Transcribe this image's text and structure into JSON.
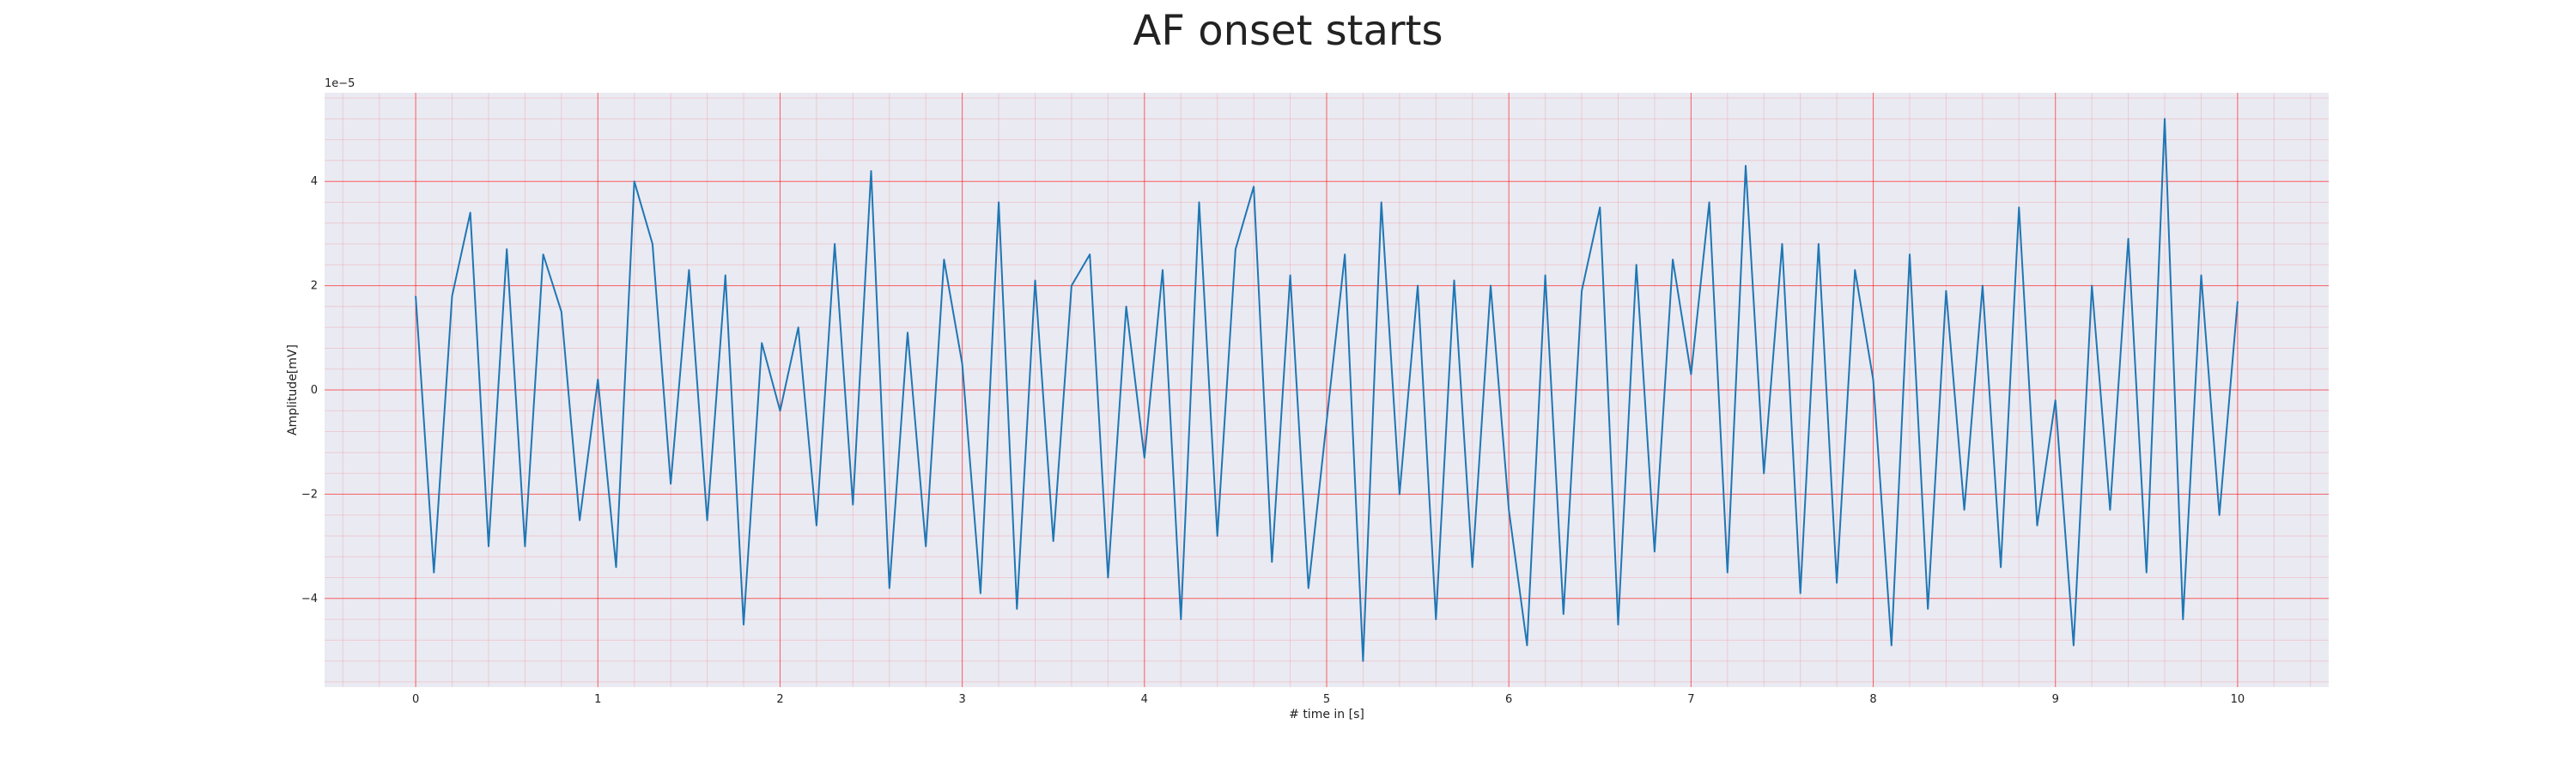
{
  "chart_data": {
    "type": "line",
    "title": "AF onset starts",
    "xlabel": "# time in [s]",
    "ylabel": "Amplitude[mV]",
    "y_offset_label": "1e−5",
    "xlim": [
      -0.5,
      10.5
    ],
    "ylim": [
      -5.7,
      5.7
    ],
    "x_ticks": [
      0,
      1,
      2,
      3,
      4,
      5,
      6,
      7,
      8,
      9,
      10
    ],
    "y_ticks": [
      -4,
      -2,
      0,
      2,
      4
    ],
    "x_tick_labels": [
      "0",
      "1",
      "2",
      "3",
      "4",
      "5",
      "6",
      "7",
      "8",
      "9",
      "10"
    ],
    "y_tick_labels": [
      "−4",
      "−2",
      "0",
      "2",
      "4"
    ],
    "grid": {
      "major": true,
      "minor": true,
      "color": "#ff0000"
    },
    "background": "#eaeaf2",
    "series": [
      {
        "color": "#1f77b4",
        "x": [
          0.0,
          0.1,
          0.2,
          0.3,
          0.4,
          0.5,
          0.6,
          0.7,
          0.8,
          0.9,
          1.0,
          1.1,
          1.2,
          1.3,
          1.4,
          1.5,
          1.6,
          1.7,
          1.8,
          1.9,
          2.0,
          2.1,
          2.2,
          2.3,
          2.4,
          2.5,
          2.6,
          2.7,
          2.8,
          2.9,
          3.0,
          3.1,
          3.2,
          3.3,
          3.4,
          3.5,
          3.6,
          3.7,
          3.8,
          3.9,
          4.0,
          4.1,
          4.2,
          4.3,
          4.4,
          4.5,
          4.6,
          4.7,
          4.8,
          4.9,
          5.0,
          5.1,
          5.2,
          5.3,
          5.4,
          5.5,
          5.6,
          5.7,
          5.8,
          5.9,
          6.0,
          6.1,
          6.2,
          6.3,
          6.4,
          6.5,
          6.6,
          6.7,
          6.8,
          6.9,
          7.0,
          7.1,
          7.2,
          7.3,
          7.4,
          7.5,
          7.6,
          7.7,
          7.8,
          7.9,
          8.0,
          8.1,
          8.2,
          8.3,
          8.4,
          8.5,
          8.6,
          8.7,
          8.8,
          8.9,
          9.0,
          9.1,
          9.2,
          9.3,
          9.4,
          9.5,
          9.6,
          9.7,
          9.8,
          9.9,
          10.0
        ],
        "y": [
          1.8,
          -3.5,
          1.8,
          3.4,
          -3.0,
          2.7,
          -3.0,
          2.6,
          1.5,
          -2.5,
          0.2,
          -3.4,
          4.0,
          2.8,
          -1.8,
          2.3,
          -2.5,
          2.2,
          -4.5,
          0.9,
          -0.4,
          1.2,
          -2.6,
          2.8,
          -2.2,
          4.2,
          -3.8,
          1.1,
          -3.0,
          2.5,
          0.5,
          -3.9,
          3.6,
          -4.2,
          2.1,
          -2.9,
          2.0,
          2.6,
          -3.6,
          1.6,
          -1.3,
          2.3,
          -4.4,
          3.6,
          -2.8,
          2.7,
          3.9,
          -3.3,
          2.2,
          -3.8,
          -0.6,
          2.6,
          -5.2,
          3.6,
          -2.0,
          2.0,
          -4.4,
          2.1,
          -3.4,
          2.0,
          -2.3,
          -4.9,
          2.2,
          -4.3,
          1.9,
          3.5,
          -4.5,
          2.4,
          -3.1,
          2.5,
          0.3,
          3.6,
          -3.5,
          4.3,
          -1.6,
          2.8,
          -3.9,
          2.8,
          -3.7,
          2.3,
          0.2,
          -4.9,
          2.6,
          -4.2,
          1.9,
          -2.3,
          2.0,
          -3.4,
          3.5,
          -2.6,
          -0.2,
          -4.9,
          2.0,
          -2.3,
          2.9,
          -3.5,
          5.2,
          -4.4,
          2.2,
          -2.4,
          1.7
        ]
      }
    ]
  }
}
